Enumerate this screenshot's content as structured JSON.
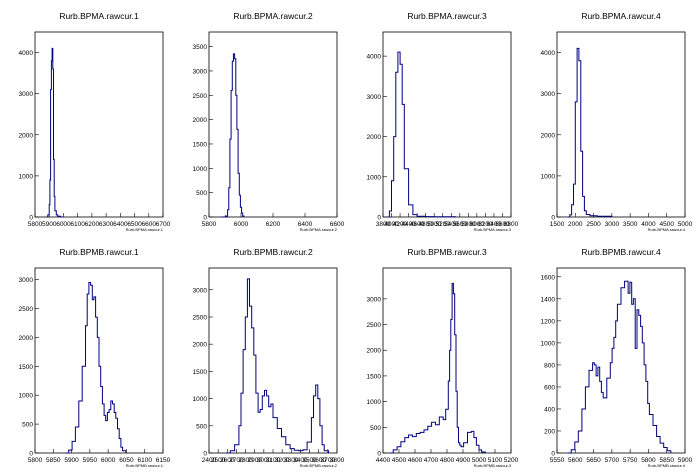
{
  "chart_data": [
    {
      "type": "histogram",
      "title": "Rurb.BPMA.rawcur.1",
      "xlabel": "Rurb.BPMA.rawcur.1",
      "xlim": [
        5800,
        6700
      ],
      "ylim": [
        0,
        4500
      ],
      "x_tick_labels": [
        "5800",
        "5900",
        "6000",
        "6100",
        "6200",
        "6300",
        "6400",
        "6500",
        "6600",
        "6700"
      ],
      "y_tick_labels": [
        "0",
        "1000",
        "2000",
        "3000",
        "4000"
      ],
      "series": [
        {
          "x": [
            5880,
            5890,
            5900,
            5905,
            5910,
            5915,
            5920,
            5925,
            5930,
            5935,
            5940,
            5950,
            5960,
            5980,
            6000
          ],
          "values": [
            0,
            50,
            300,
            900,
            3100,
            3800,
            4100,
            3600,
            1400,
            500,
            150,
            50,
            20,
            0,
            0
          ]
        }
      ]
    },
    {
      "type": "histogram",
      "title": "Rurb.BPMA.rawcur.2",
      "xlabel": "Rurb.BPMA.rawcur.2",
      "xlim": [
        5700,
        6800
      ],
      "ylim": [
        0,
        3800
      ],
      "x_tick_labels": [
        "5800",
        "6000",
        "6200",
        "6400",
        "6600"
      ],
      "y_tick_labels": [
        "0",
        "500",
        "1000",
        "1500",
        "2000",
        "2500",
        "3000",
        "3500"
      ],
      "series": [
        {
          "x": [
            5800,
            5840,
            5860,
            5870,
            5880,
            5890,
            5900,
            5910,
            5920,
            5930,
            5940,
            5950,
            5960,
            5970,
            5980,
            5990,
            6000
          ],
          "values": [
            0,
            20,
            150,
            600,
            1600,
            2600,
            3200,
            3350,
            3250,
            2500,
            1800,
            900,
            450,
            200,
            80,
            20,
            0
          ]
        }
      ]
    },
    {
      "type": "histogram",
      "title": "Rurb.BPMA.rawcur.3",
      "xlabel": "Rurb.BPMA.rawcur.3",
      "xlim": [
        3800,
        6800
      ],
      "ylim": [
        0,
        4600
      ],
      "x_tick_labels": [
        "3800",
        "4000",
        "4200",
        "4400",
        "4600",
        "4800",
        "5000",
        "5200",
        "5400",
        "5600",
        "5800",
        "6000",
        "6200",
        "6400",
        "6600",
        "6800"
      ],
      "y_tick_labels": [
        "0",
        "1000",
        "2000",
        "3000",
        "4000"
      ],
      "series": [
        {
          "x": [
            3900,
            3950,
            4000,
            4050,
            4100,
            4150,
            4200,
            4250,
            4300,
            4400,
            4500,
            4600,
            4800,
            5000,
            5500
          ],
          "values": [
            0,
            150,
            900,
            2000,
            3600,
            4100,
            3800,
            2800,
            1200,
            300,
            60,
            20,
            10,
            5,
            0
          ]
        }
      ]
    },
    {
      "type": "histogram",
      "title": "Rurb.BPMA.rawcur.4",
      "xlabel": "Rurb.BPMA.rawcur.4",
      "xlim": [
        1500,
        5000
      ],
      "ylim": [
        0,
        4500
      ],
      "x_tick_labels": [
        "1500",
        "2000",
        "2500",
        "3000",
        "3500",
        "4000",
        "4500",
        "5000"
      ],
      "y_tick_labels": [
        "0",
        "1000",
        "2000",
        "3000",
        "4000"
      ],
      "series": [
        {
          "x": [
            1800,
            1850,
            1900,
            1950,
            2000,
            2050,
            2100,
            2150,
            2200,
            2250,
            2300,
            2400,
            2600,
            3000
          ],
          "values": [
            0,
            50,
            300,
            800,
            2800,
            4100,
            3800,
            1600,
            500,
            150,
            60,
            30,
            20,
            0
          ]
        }
      ]
    },
    {
      "type": "histogram",
      "title": "Rurb.BPMB.rawcur.1",
      "xlabel": "Rurb.BPMB.rawcur.1",
      "xlim": [
        5800,
        6180
      ],
      "ylim": [
        0,
        3200
      ],
      "x_tick_labels": [
        "5800",
        "5850",
        "5900",
        "5950",
        "6000",
        "6050",
        "6100",
        "6150"
      ],
      "y_tick_labels": [
        "0",
        "500",
        "1000",
        "1500",
        "2000",
        "2500",
        "3000"
      ],
      "series": [
        {
          "x": [
            5890,
            5900,
            5910,
            5920,
            5930,
            5940,
            5950,
            5955,
            5960,
            5965,
            5970,
            5975,
            5980,
            5985,
            5990,
            5995,
            6000,
            6005,
            6010,
            6015,
            6020,
            6025,
            6030,
            6035,
            6040,
            6045,
            6050,
            6055,
            6060,
            6070
          ],
          "values": [
            0,
            50,
            200,
            450,
            900,
            1500,
            2200,
            2750,
            2950,
            2900,
            2650,
            2700,
            2350,
            2000,
            1500,
            1150,
            850,
            650,
            560,
            700,
            750,
            900,
            850,
            700,
            600,
            420,
            250,
            100,
            40,
            0
          ]
        }
      ]
    },
    {
      "type": "histogram",
      "title": "Rurb.BPMB.rawcur.2",
      "xlabel": "Rurb.BPMB.rawcur.2",
      "xlim": [
        2300,
        2900
      ],
      "ylim": [
        0,
        3400
      ],
      "x_tick_labels": [
        "2400",
        "2500",
        "2600",
        "2700",
        "2800",
        "2900",
        "3000",
        "3100",
        "3200",
        "3300",
        "3400",
        "3500",
        "3600",
        "3700",
        "3800"
      ],
      "y_tick_labels": [
        "0",
        "500",
        "1000",
        "1500",
        "2000",
        "2500",
        "3000"
      ],
      "series": [
        {
          "x": [
            2380,
            2400,
            2420,
            2440,
            2450,
            2460,
            2470,
            2480,
            2490,
            2500,
            2510,
            2520,
            2530,
            2540,
            2550,
            2560,
            2570,
            2580,
            2590,
            2600,
            2620,
            2640,
            2660,
            2680,
            2700,
            2720,
            2740,
            2760,
            2780,
            2790,
            2800,
            2810,
            2820,
            2830,
            2840,
            2860
          ],
          "values": [
            0,
            40,
            150,
            500,
            1100,
            1900,
            2500,
            3200,
            2700,
            2300,
            1800,
            1100,
            750,
            800,
            1050,
            1150,
            1050,
            850,
            900,
            650,
            450,
            300,
            150,
            80,
            50,
            40,
            60,
            200,
            650,
            1050,
            1250,
            1000,
            500,
            150,
            40,
            0
          ]
        }
      ]
    },
    {
      "type": "histogram",
      "title": "Rurb.BPMB.rawcur.3",
      "xlabel": "Rurb.BPMB.rawcur.3",
      "xlim": [
        4400,
        5400
      ],
      "ylim": [
        0,
        3600
      ],
      "x_tick_labels": [
        "4400",
        "4500",
        "4600",
        "4700",
        "4800",
        "4900",
        "5000",
        "5100",
        "5200"
      ],
      "y_tick_labels": [
        "0",
        "500",
        "1000",
        "1500",
        "2000",
        "2500",
        "3000"
      ],
      "series": [
        {
          "x": [
            4450,
            4480,
            4510,
            4540,
            4570,
            4600,
            4630,
            4660,
            4690,
            4720,
            4750,
            4780,
            4810,
            4840,
            4870,
            4890,
            4910,
            4920,
            4930,
            4940,
            4950,
            4960,
            4970,
            4980,
            4990,
            5000,
            5010,
            5030,
            5060,
            5090,
            5110,
            5130,
            5150,
            5170,
            5200
          ],
          "values": [
            0,
            60,
            120,
            220,
            300,
            350,
            320,
            380,
            400,
            450,
            520,
            600,
            550,
            700,
            650,
            850,
            1400,
            2000,
            2600,
            3300,
            3100,
            2300,
            1200,
            500,
            200,
            150,
            120,
            200,
            400,
            420,
            300,
            150,
            60,
            20,
            0
          ]
        }
      ]
    },
    {
      "type": "histogram",
      "title": "Rurb.BPMB.rawcur.4",
      "xlabel": "Rurb.BPMB.rawcur.4",
      "xlim": [
        5550,
        5910
      ],
      "ylim": [
        0,
        1680
      ],
      "x_tick_labels": [
        "5550",
        "5600",
        "5650",
        "5700",
        "5750",
        "5800",
        "5850",
        "5900"
      ],
      "y_tick_labels": [
        "0",
        "200",
        "400",
        "600",
        "800",
        "1000",
        "1200",
        "1400",
        "1600"
      ],
      "series": [
        {
          "x": [
            5580,
            5590,
            5600,
            5610,
            5620,
            5630,
            5640,
            5650,
            5655,
            5660,
            5665,
            5670,
            5675,
            5680,
            5690,
            5700,
            5705,
            5710,
            5715,
            5720,
            5730,
            5740,
            5750,
            5755,
            5760,
            5765,
            5770,
            5775,
            5780,
            5785,
            5790,
            5795,
            5800,
            5805,
            5810,
            5820,
            5830,
            5840,
            5850,
            5860,
            5870
          ],
          "values": [
            0,
            30,
            100,
            200,
            400,
            600,
            750,
            820,
            800,
            700,
            780,
            650,
            550,
            500,
            680,
            820,
            950,
            1050,
            1200,
            1350,
            1500,
            1560,
            1450,
            1550,
            1350,
            1400,
            950,
            1300,
            1250,
            1150,
            1000,
            800,
            650,
            450,
            350,
            250,
            150,
            90,
            50,
            20,
            0
          ]
        }
      ]
    }
  ]
}
